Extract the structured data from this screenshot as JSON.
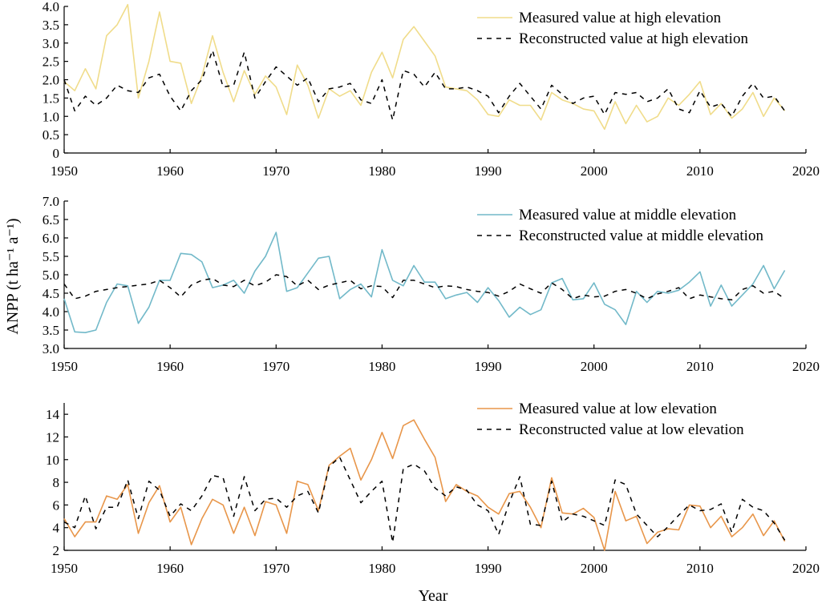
{
  "chart_data": {
    "type": "line",
    "ylabel": "ANPP (t ha⁻¹ a⁻¹)",
    "xlabel": "Year",
    "panels": [
      {
        "id": "high",
        "xlim": [
          1950,
          2020
        ],
        "xticks": [
          1950,
          1960,
          1970,
          1980,
          1990,
          2000,
          2010,
          2020
        ],
        "ylim": [
          0,
          4.0
        ],
        "yticks": [
          "0",
          "0.5",
          "1.0",
          "1.5",
          "2.0",
          "2.5",
          "3.0",
          "3.5",
          "4.0"
        ],
        "legend_position": "top-right",
        "series": [
          {
            "name": "Measured value at high elevation",
            "color": "#f0dc8a",
            "dash": "solid",
            "x": [
              1950,
              1951,
              1952,
              1953,
              1954,
              1955,
              1956,
              1957,
              1958,
              1959,
              1960,
              1961,
              1962,
              1963,
              1964,
              1965,
              1966,
              1967,
              1968,
              1969,
              1970,
              1971,
              1972,
              1973,
              1974,
              1975,
              1976,
              1977,
              1978,
              1979,
              1980,
              1981,
              1982,
              1983,
              1984,
              1985,
              1986,
              1987,
              1988,
              1989,
              1990,
              1991,
              1992,
              1993,
              1994,
              1995,
              1996,
              1997,
              1998,
              1999,
              2000,
              2001,
              2002,
              2003,
              2004,
              2005,
              2006,
              2007,
              2008,
              2009,
              2010,
              2011,
              2012,
              2013,
              2014,
              2015,
              2016,
              2017,
              2018
            ],
            "y": [
              1.95,
              1.7,
              2.3,
              1.75,
              3.2,
              3.5,
              4.05,
              1.5,
              2.5,
              3.85,
              2.5,
              2.45,
              1.35,
              2.1,
              3.2,
              2.2,
              1.4,
              2.25,
              1.6,
              2.1,
              1.8,
              1.05,
              2.4,
              1.85,
              0.95,
              1.75,
              1.55,
              1.7,
              1.3,
              2.2,
              2.75,
              2.05,
              3.1,
              3.45,
              3.05,
              2.65,
              1.8,
              1.75,
              1.7,
              1.45,
              1.05,
              1.0,
              1.45,
              1.3,
              1.3,
              0.9,
              1.65,
              1.45,
              1.35,
              1.2,
              1.15,
              0.65,
              1.4,
              0.8,
              1.3,
              0.85,
              1.0,
              1.5,
              1.3,
              1.6,
              1.95,
              1.05,
              1.35,
              0.95,
              1.2,
              1.65,
              1.0,
              1.5,
              1.15
            ]
          },
          {
            "name": "Reconstructed value at high elevation",
            "color": "#000000",
            "dash": "dashed",
            "x": [
              1950,
              1951,
              1952,
              1953,
              1954,
              1955,
              1956,
              1957,
              1958,
              1959,
              1960,
              1961,
              1962,
              1963,
              1964,
              1965,
              1966,
              1967,
              1968,
              1969,
              1970,
              1971,
              1972,
              1973,
              1974,
              1975,
              1976,
              1977,
              1978,
              1979,
              1980,
              1981,
              1982,
              1983,
              1984,
              1985,
              1986,
              1987,
              1988,
              1989,
              1990,
              1991,
              1992,
              1993,
              1994,
              1995,
              1996,
              1997,
              1998,
              1999,
              2000,
              2001,
              2002,
              2003,
              2004,
              2005,
              2006,
              2007,
              2008,
              2009,
              2010,
              2011,
              2012,
              2013,
              2014,
              2015,
              2016,
              2017,
              2018
            ],
            "y": [
              2.0,
              1.15,
              1.55,
              1.3,
              1.5,
              1.85,
              1.7,
              1.65,
              2.05,
              2.15,
              1.55,
              1.15,
              1.7,
              2.0,
              2.8,
              1.8,
              1.85,
              2.75,
              1.5,
              1.95,
              2.35,
              2.1,
              1.85,
              2.05,
              1.4,
              1.75,
              1.8,
              1.9,
              1.45,
              1.35,
              2.0,
              0.9,
              2.25,
              2.15,
              1.8,
              2.2,
              1.75,
              1.75,
              1.8,
              1.7,
              1.55,
              1.1,
              1.55,
              1.9,
              1.55,
              1.2,
              1.85,
              1.6,
              1.35,
              1.5,
              1.55,
              1.05,
              1.65,
              1.6,
              1.65,
              1.4,
              1.5,
              1.75,
              1.2,
              1.1,
              1.7,
              1.25,
              1.35,
              1.0,
              1.55,
              1.9,
              1.5,
              1.55,
              1.15
            ]
          }
        ]
      },
      {
        "id": "middle",
        "xlim": [
          1950,
          2020
        ],
        "xticks": [
          1950,
          1960,
          1970,
          1980,
          1990,
          2000,
          2010,
          2020
        ],
        "ylim": [
          3.0,
          7.0
        ],
        "yticks": [
          "3.0",
          "3.5",
          "4.0",
          "4.5",
          "5.0",
          "5.5",
          "6.0",
          "6.5",
          "7.0"
        ],
        "legend_position": "top-right",
        "series": [
          {
            "name": "Measured value at middle elevation",
            "color": "#72b9c9",
            "dash": "solid",
            "x": [
              1950,
              1951,
              1952,
              1953,
              1954,
              1955,
              1956,
              1957,
              1958,
              1959,
              1960,
              1961,
              1962,
              1963,
              1964,
              1965,
              1966,
              1967,
              1968,
              1969,
              1970,
              1971,
              1972,
              1973,
              1974,
              1975,
              1976,
              1977,
              1978,
              1979,
              1980,
              1981,
              1982,
              1983,
              1984,
              1985,
              1986,
              1987,
              1988,
              1989,
              1990,
              1991,
              1992,
              1993,
              1994,
              1995,
              1996,
              1997,
              1998,
              1999,
              2000,
              2001,
              2002,
              2003,
              2004,
              2005,
              2006,
              2007,
              2008,
              2009,
              2010,
              2011,
              2012,
              2013,
              2014,
              2015,
              2016,
              2017,
              2018
            ],
            "y": [
              4.35,
              3.45,
              3.43,
              3.5,
              4.25,
              4.75,
              4.7,
              3.68,
              4.12,
              4.85,
              4.85,
              5.58,
              5.55,
              5.35,
              4.65,
              4.72,
              4.85,
              4.5,
              5.1,
              5.5,
              6.15,
              4.55,
              4.65,
              5.05,
              5.45,
              5.5,
              4.35,
              4.6,
              4.75,
              4.4,
              5.68,
              4.85,
              4.7,
              5.25,
              4.8,
              4.8,
              4.35,
              4.45,
              4.52,
              4.25,
              4.65,
              4.3,
              3.85,
              4.12,
              3.92,
              4.05,
              4.78,
              4.9,
              4.32,
              4.35,
              4.78,
              4.2,
              4.05,
              3.65,
              4.55,
              4.25,
              4.55,
              4.5,
              4.58,
              4.8,
              5.08,
              4.15,
              4.72,
              4.15,
              4.45,
              4.75,
              5.25,
              4.62,
              5.12
            ]
          },
          {
            "name": "Reconstructed value at middle elevation",
            "color": "#000000",
            "dash": "dashed",
            "x": [
              1950,
              1951,
              1952,
              1953,
              1954,
              1955,
              1956,
              1957,
              1958,
              1959,
              1960,
              1961,
              1962,
              1963,
              1964,
              1965,
              1966,
              1967,
              1968,
              1969,
              1970,
              1971,
              1972,
              1973,
              1974,
              1975,
              1976,
              1977,
              1978,
              1979,
              1980,
              1981,
              1982,
              1983,
              1984,
              1985,
              1986,
              1987,
              1988,
              1989,
              1990,
              1991,
              1992,
              1993,
              1994,
              1995,
              1996,
              1997,
              1998,
              1999,
              2000,
              2001,
              2002,
              2003,
              2004,
              2005,
              2006,
              2007,
              2008,
              2009,
              2010,
              2011,
              2012,
              2013,
              2014,
              2015,
              2016,
              2017,
              2018
            ],
            "y": [
              4.75,
              4.35,
              4.42,
              4.55,
              4.6,
              4.65,
              4.68,
              4.72,
              4.75,
              4.85,
              4.65,
              4.4,
              4.72,
              4.85,
              4.9,
              4.72,
              4.68,
              4.85,
              4.7,
              4.8,
              5.0,
              4.95,
              4.7,
              4.85,
              4.6,
              4.72,
              4.78,
              4.85,
              4.62,
              4.7,
              4.68,
              4.38,
              4.85,
              4.85,
              4.75,
              4.65,
              4.7,
              4.68,
              4.6,
              4.55,
              4.52,
              4.42,
              4.55,
              4.75,
              4.62,
              4.5,
              4.78,
              4.6,
              4.35,
              4.45,
              4.4,
              4.42,
              4.55,
              4.6,
              4.5,
              4.35,
              4.48,
              4.55,
              4.65,
              4.35,
              4.45,
              4.4,
              4.35,
              4.32,
              4.6,
              4.7,
              4.5,
              4.55,
              4.35
            ]
          }
        ]
      },
      {
        "id": "low",
        "xlim": [
          1950,
          2020
        ],
        "xticks": [
          1950,
          1960,
          1970,
          1980,
          1990,
          2000,
          2010,
          2020
        ],
        "ylim": [
          2,
          15
        ],
        "yticks": [
          "2",
          "4",
          "6",
          "8",
          "10",
          "12",
          "14"
        ],
        "legend_position": "top-right",
        "series": [
          {
            "name": "Measured value at low elevation",
            "color": "#e8964a",
            "dash": "solid",
            "x": [
              1950,
              1951,
              1952,
              1953,
              1954,
              1955,
              1956,
              1957,
              1958,
              1959,
              1960,
              1961,
              1962,
              1963,
              1964,
              1965,
              1966,
              1967,
              1968,
              1969,
              1970,
              1971,
              1972,
              1973,
              1974,
              1975,
              1976,
              1977,
              1978,
              1979,
              1980,
              1981,
              1982,
              1983,
              1984,
              1985,
              1986,
              1987,
              1988,
              1989,
              1990,
              1991,
              1992,
              1993,
              1994,
              1995,
              1996,
              1997,
              1998,
              1999,
              2000,
              2001,
              2002,
              2003,
              2004,
              2005,
              2006,
              2007,
              2008,
              2009,
              2010,
              2011,
              2012,
              2013,
              2014,
              2015,
              2016,
              2017,
              2018
            ],
            "y": [
              4.8,
              3.2,
              4.5,
              4.5,
              6.8,
              6.5,
              7.8,
              3.5,
              6.2,
              7.7,
              4.5,
              5.8,
              2.5,
              4.8,
              6.5,
              6.0,
              3.5,
              5.8,
              3.3,
              6.3,
              6.0,
              3.5,
              8.1,
              7.8,
              5.5,
              9.5,
              10.3,
              11.0,
              8.2,
              10.0,
              12.4,
              10.1,
              13.0,
              13.5,
              11.8,
              10.2,
              6.3,
              7.8,
              7.2,
              6.8,
              5.8,
              5.2,
              7.0,
              7.2,
              5.8,
              4.0,
              8.4,
              5.3,
              5.2,
              5.7,
              4.9,
              2.0,
              7.2,
              4.6,
              5.0,
              2.6,
              3.6,
              3.9,
              3.8,
              6.0,
              5.9,
              4.0,
              5.0,
              3.2,
              4.0,
              5.2,
              3.3,
              4.6,
              2.8
            ]
          },
          {
            "name": "Reconstructed value at low elevation",
            "color": "#000000",
            "dash": "dashed",
            "x": [
              1950,
              1951,
              1952,
              1953,
              1954,
              1955,
              1956,
              1957,
              1958,
              1959,
              1960,
              1961,
              1962,
              1963,
              1964,
              1965,
              1966,
              1967,
              1968,
              1969,
              1970,
              1971,
              1972,
              1973,
              1974,
              1975,
              1976,
              1977,
              1978,
              1979,
              1980,
              1981,
              1982,
              1983,
              1984,
              1985,
              1986,
              1987,
              1988,
              1989,
              1990,
              1991,
              1992,
              1993,
              1994,
              1995,
              1996,
              1997,
              1998,
              1999,
              2000,
              2001,
              2002,
              2003,
              2004,
              2005,
              2006,
              2007,
              2008,
              2009,
              2010,
              2011,
              2012,
              2013,
              2014,
              2015,
              2016,
              2017,
              2018
            ],
            "y": [
              4.5,
              4.0,
              6.8,
              3.9,
              5.8,
              5.8,
              8.2,
              4.8,
              8.1,
              7.3,
              5.0,
              6.1,
              5.5,
              6.8,
              8.6,
              8.4,
              5.0,
              8.5,
              5.5,
              6.5,
              6.6,
              5.8,
              6.8,
              7.2,
              5.3,
              9.4,
              10.2,
              8.2,
              6.2,
              7.2,
              8.1,
              2.7,
              9.2,
              9.6,
              9.0,
              7.5,
              6.8,
              7.6,
              7.3,
              6.0,
              5.5,
              3.4,
              6.2,
              8.5,
              4.3,
              4.2,
              8.1,
              4.5,
              5.2,
              5.0,
              4.6,
              4.2,
              8.2,
              7.8,
              5.2,
              4.2,
              3.2,
              4.1,
              5.1,
              6.0,
              5.5,
              5.6,
              6.1,
              3.6,
              6.5,
              5.8,
              5.5,
              4.4,
              2.9
            ]
          }
        ]
      }
    ]
  }
}
